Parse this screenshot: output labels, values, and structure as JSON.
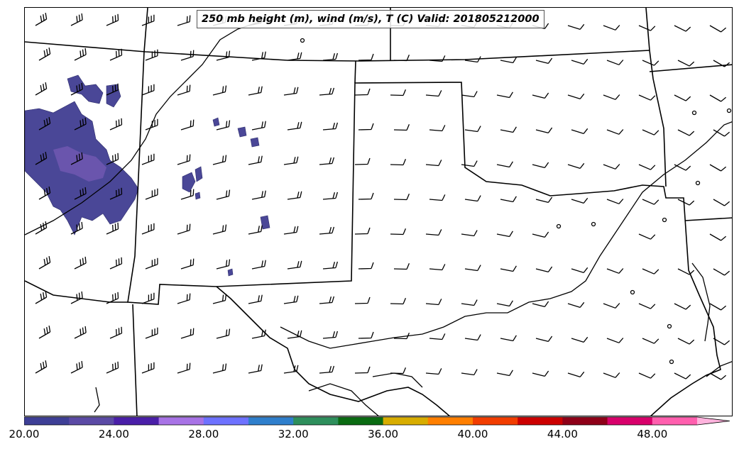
{
  "title": "250 mb height (m), wind (m/s), T (C) Valid: 201805212000",
  "colorbar": {
    "tick_labels": [
      "20.00",
      "24.00",
      "28.00",
      "32.00",
      "36.00",
      "40.00",
      "44.00",
      "48.00"
    ],
    "colors": [
      "#3e3f96",
      "#5b4aa5",
      "#4a1fa8",
      "#a873e6",
      "#6e72ff",
      "#2f7fcc",
      "#2e8f5c",
      "#0a6b12",
      "#d8ad00",
      "#ff7f00",
      "#f23d00",
      "#cc0000",
      "#8e0018",
      "#d8006b",
      "#ff5fae",
      "#ffb3dd"
    ]
  }
}
